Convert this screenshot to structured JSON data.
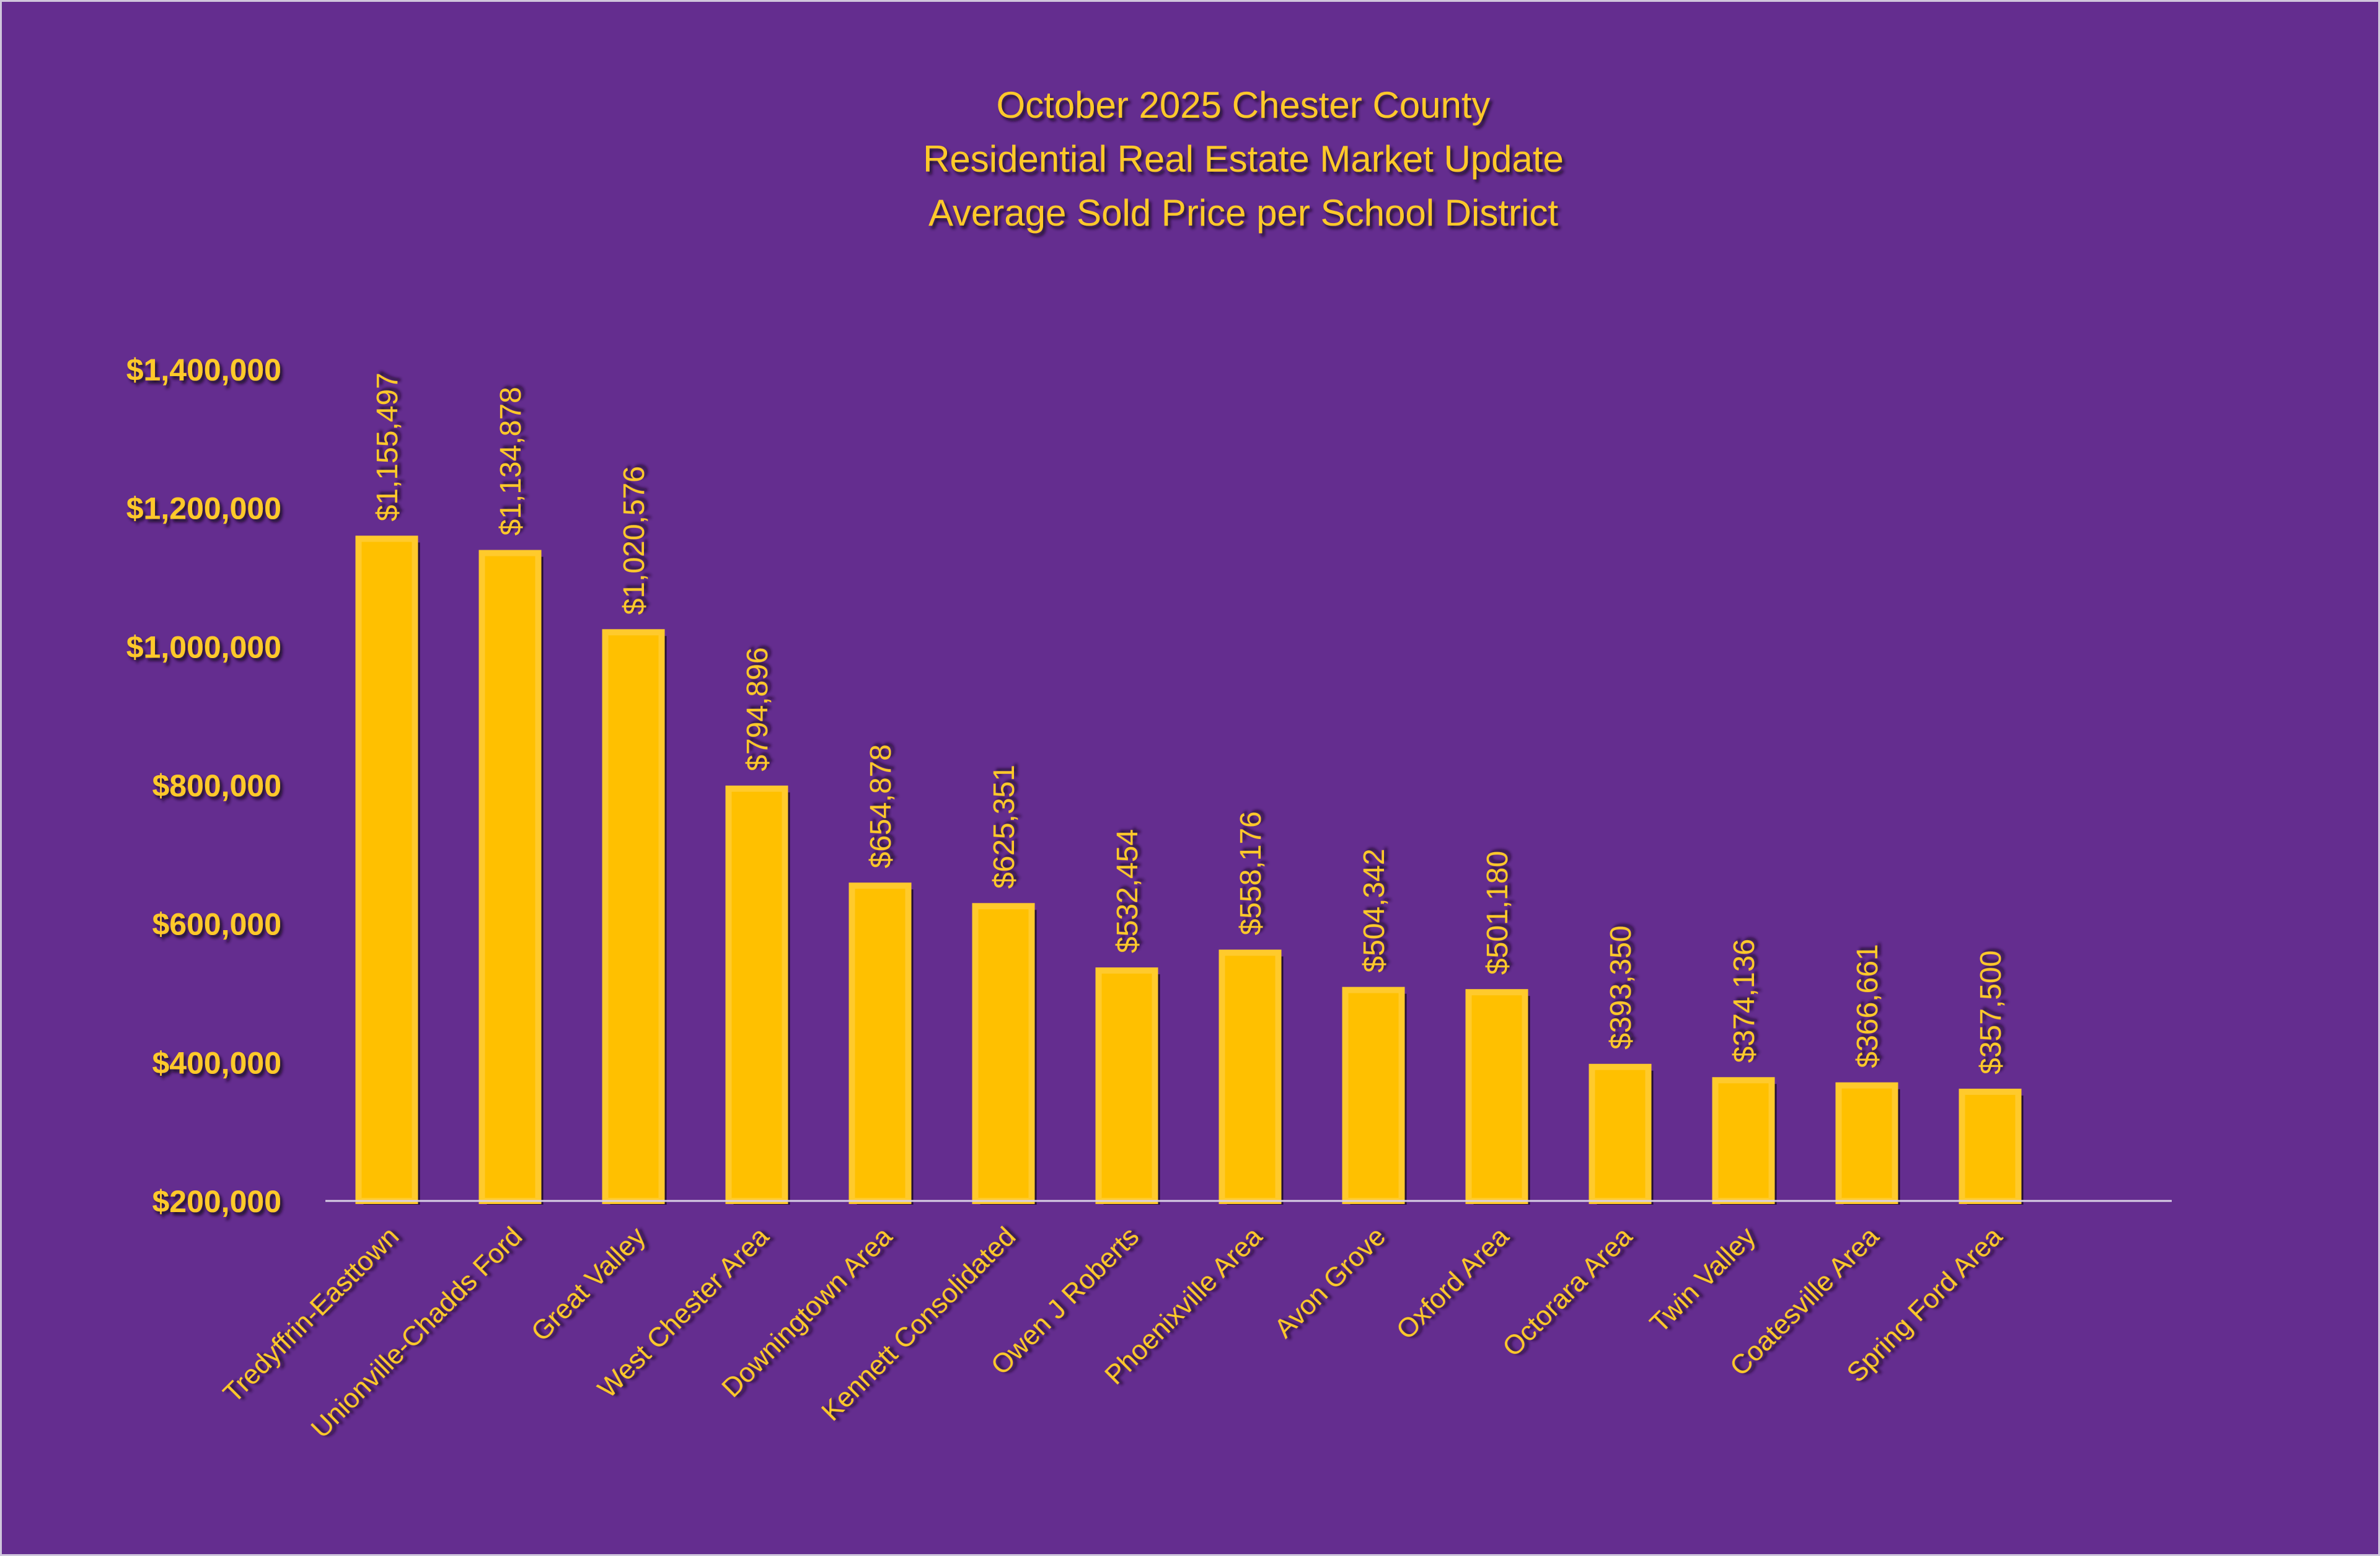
{
  "chart_data": {
    "type": "bar",
    "title": [
      "October 2025 Chester County",
      "Residential Real Estate Market Update",
      "Average Sold Price per School District"
    ],
    "xlabel": "",
    "ylabel": "",
    "categories": [
      "Tredyffrin-Easttown",
      "Unionville-Chadds Ford",
      "Great Valley",
      "West Chester Area",
      "Downingtown Area",
      "Kennett Consolidated",
      "Owen J Roberts",
      "Phoenixville Area",
      "Avon Grove",
      "Oxford Area",
      "Octorara Area",
      "Twin Valley",
      "Coatesville Area",
      "Spring Ford Area"
    ],
    "values": [
      1155497,
      1134878,
      1020576,
      794896,
      654878,
      625351,
      532454,
      558176,
      504342,
      501180,
      393350,
      374136,
      366661,
      357500
    ],
    "data_labels": [
      "$1,155,497",
      "$1,134,878",
      "$1,020,576",
      "$794,896",
      "$654,878",
      "$625,351",
      "$532,454",
      "$558,176",
      "$504,342",
      "$501,180",
      "$393,350",
      "$374,136",
      "$366,661",
      "$357,500"
    ],
    "yticks": [
      200000,
      400000,
      600000,
      800000,
      1000000,
      1200000,
      1400000
    ],
    "ytick_labels": [
      "$200,000",
      "$400,000",
      "$600,000",
      "$800,000",
      "$1,000,000",
      "$1,200,000",
      "$1,400,000"
    ],
    "ylim": [
      200000,
      1400000
    ],
    "grid": false,
    "legend": "none",
    "colors": {
      "background": "#642d8f",
      "bar": "#ffc000",
      "text": "#ffc929",
      "axis": "#d9d0e6"
    }
  }
}
